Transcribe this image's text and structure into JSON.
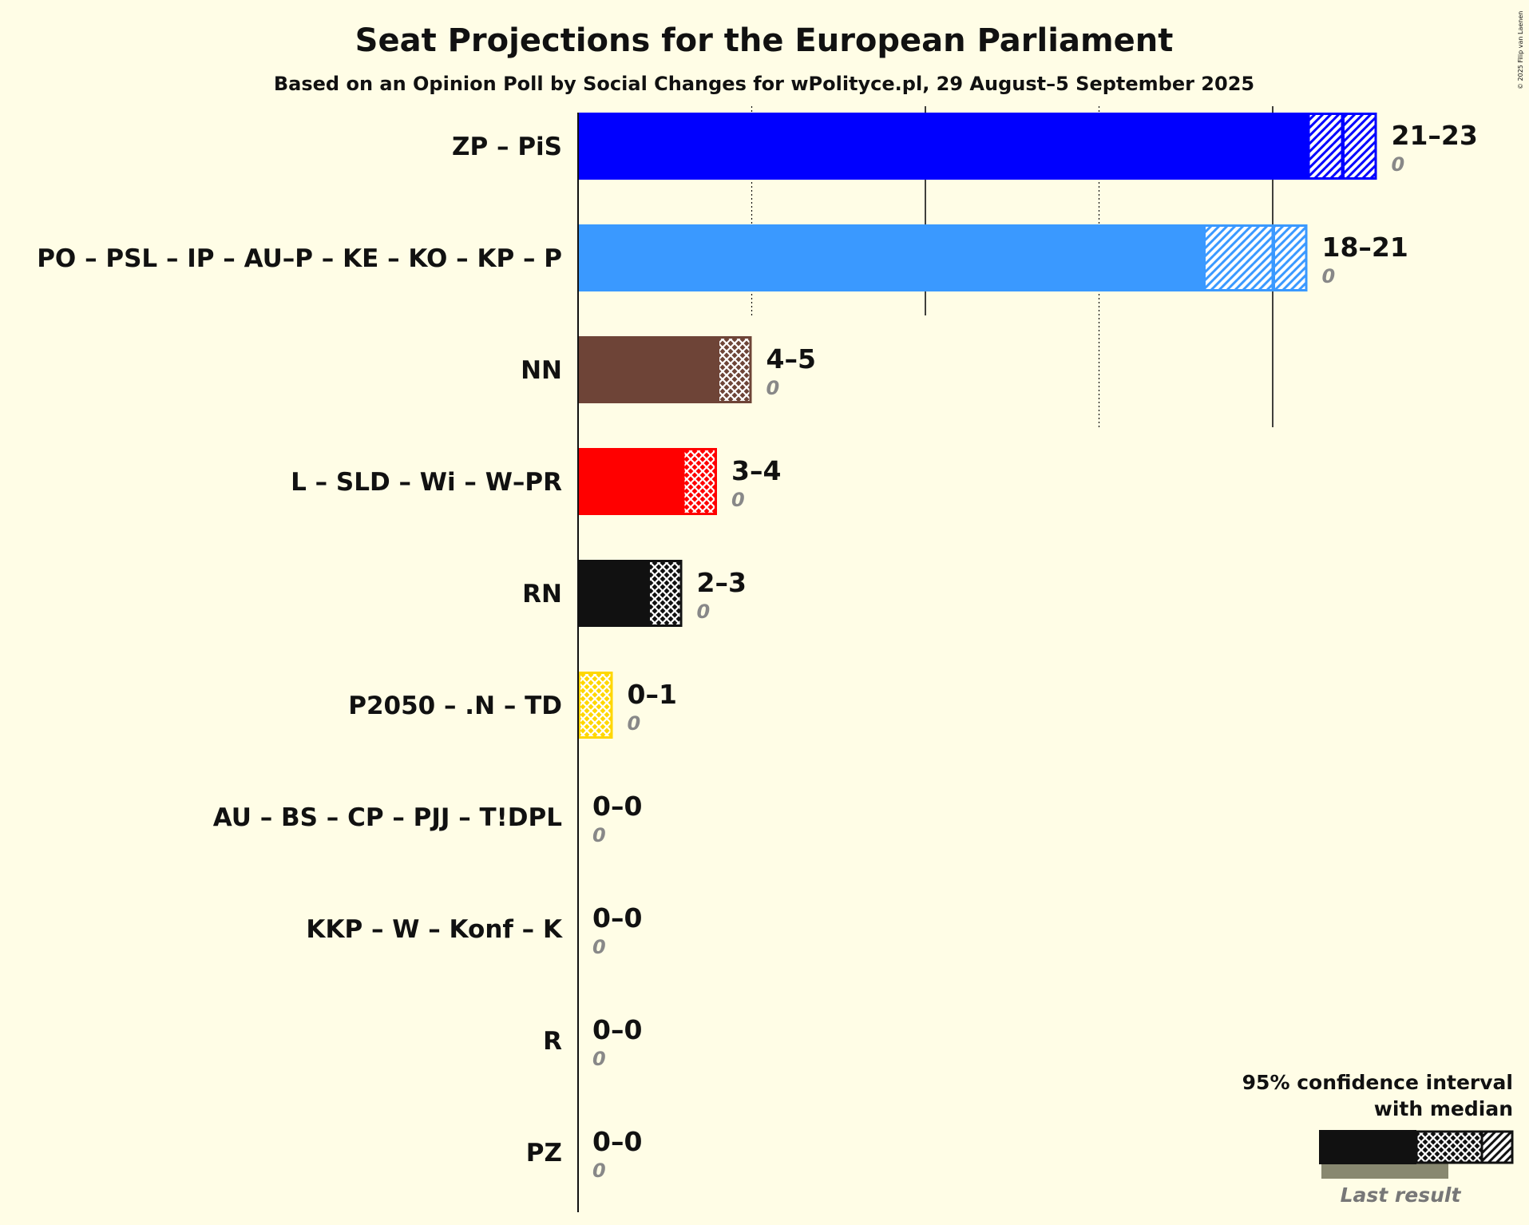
{
  "copyright": "© 2025 Filip van Laenen",
  "chart_data": {
    "type": "bar",
    "orientation": "horizontal",
    "title": "Seat Projections for the European Parliament",
    "subtitle": "Based on an Opinion Poll by Social Changes for wPolityce.pl, 29 August–5 September 2025",
    "xlim": [
      0,
      23
    ],
    "grid": "vertical lines every 5 seats (solid at 10 and 20, dotted at 5 and 15)",
    "categories": [
      "ZP – PiS",
      "PO – PSL – IP – AU–P – KE – KO – KP – P",
      "NN",
      "L – SLD – Wi – W–PR",
      "RN",
      "P2050 – .N – TD",
      "AU – BS – CP – PJJ – T!DPL",
      "KKP – W – Konf – K",
      "R",
      "PZ"
    ],
    "series": [
      {
        "name": "95% confidence interval",
        "values": [
          [
            21,
            23
          ],
          [
            18,
            21
          ],
          [
            4,
            5
          ],
          [
            3,
            4
          ],
          [
            2,
            3
          ],
          [
            0,
            1
          ],
          [
            0,
            0
          ],
          [
            0,
            0
          ],
          [
            0,
            0
          ],
          [
            0,
            0
          ]
        ]
      },
      {
        "name": "with median",
        "values": [
          22,
          20,
          4,
          3,
          2,
          0,
          0,
          0,
          0,
          0
        ]
      },
      {
        "name": "Last result",
        "values": [
          0,
          0,
          0,
          0,
          0,
          0,
          0,
          0,
          0,
          0
        ]
      }
    ],
    "range_labels": [
      "21–23",
      "18–21",
      "4–5",
      "3–4",
      "2–3",
      "0–1",
      "0–0",
      "0–0",
      "0–0",
      "0–0"
    ],
    "last_labels": [
      "0",
      "0",
      "0",
      "0",
      "0",
      "0",
      "0",
      "0",
      "0",
      "0"
    ],
    "colors": [
      "#0000ff",
      "#3a99ff",
      "#6e4437",
      "#ff0000",
      "#111111",
      "#ffd700",
      "#111111",
      "#111111",
      "#111111",
      "#111111"
    ],
    "legend": {
      "placement": "bottom-right",
      "line1": "95% confidence interval",
      "line2": "with median",
      "last_result": "Last result"
    }
  }
}
